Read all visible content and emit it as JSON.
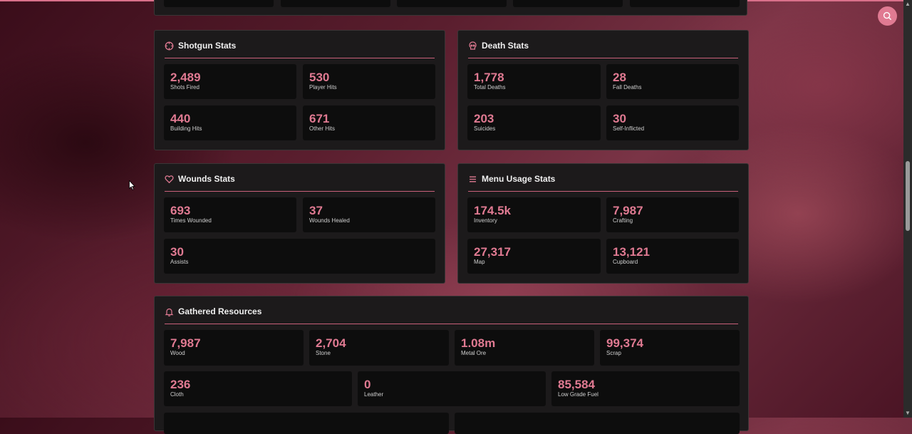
{
  "shotgun": {
    "title": "Shotgun Stats",
    "icon": "crosshair-icon",
    "stats": [
      {
        "value": "2,489",
        "label": "Shots Fired"
      },
      {
        "value": "530",
        "label": "Player Hits"
      },
      {
        "value": "440",
        "label": "Building Hits"
      },
      {
        "value": "671",
        "label": "Other Hits"
      }
    ]
  },
  "death": {
    "title": "Death Stats",
    "icon": "skull-icon",
    "stats": [
      {
        "value": "1,778",
        "label": "Total Deaths"
      },
      {
        "value": "28",
        "label": "Fall Deaths"
      },
      {
        "value": "203",
        "label": "Suicides"
      },
      {
        "value": "30",
        "label": "Self-Inflicted"
      }
    ]
  },
  "wounds": {
    "title": "Wounds Stats",
    "icon": "heart-icon",
    "stats": [
      {
        "value": "693",
        "label": "Times Wounded"
      },
      {
        "value": "37",
        "label": "Wounds Healed"
      },
      {
        "value": "30",
        "label": "Assists"
      }
    ]
  },
  "menu": {
    "title": "Menu Usage Stats",
    "icon": "menu-icon",
    "stats": [
      {
        "value": "174.5k",
        "label": "Inventory"
      },
      {
        "value": "7,987",
        "label": "Crafting"
      },
      {
        "value": "27,317",
        "label": "Map"
      },
      {
        "value": "13,121",
        "label": "Cupboard"
      }
    ]
  },
  "resources": {
    "title": "Gathered Resources",
    "icon": "bell-icon",
    "stats": [
      {
        "value": "7,987",
        "label": "Wood"
      },
      {
        "value": "2,704",
        "label": "Stone"
      },
      {
        "value": "1.08m",
        "label": "Metal Ore"
      },
      {
        "value": "99,374",
        "label": "Scrap"
      },
      {
        "value": "236",
        "label": "Cloth"
      },
      {
        "value": "0",
        "label": "Leather"
      },
      {
        "value": "85,584",
        "label": "Low Grade Fuel"
      }
    ]
  },
  "colors": {
    "accent": "#e07a92",
    "panel": "#1c1a1b",
    "card": "#0d0d0d"
  },
  "search_icon": "search-icon"
}
